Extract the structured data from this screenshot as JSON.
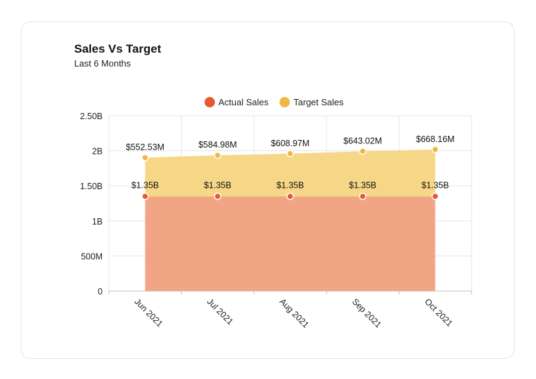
{
  "card": {
    "title": "Sales Vs Target",
    "subtitle": "Last 6 Months"
  },
  "colors": {
    "actual": "#e8582e",
    "actual_fill": "#f2a585",
    "target": "#efb844",
    "target_fill": "#f6d787",
    "grid": "#e6e6e6"
  },
  "chart_data": {
    "type": "area",
    "stacked": true,
    "categories": [
      "Jun 2021",
      "Jul 2021",
      "Aug 2021",
      "Sep 2021",
      "Oct 2021"
    ],
    "series": [
      {
        "name": "Actual Sales",
        "values": [
          1350000000,
          1350000000,
          1350000000,
          1350000000,
          1350000000
        ],
        "labels": [
          "$1.35B",
          "$1.35B",
          "$1.35B",
          "$1.35B",
          "$1.35B"
        ]
      },
      {
        "name": "Target Sales",
        "values": [
          552530000,
          584980000,
          608970000,
          643020000,
          668160000
        ],
        "labels": [
          "$552.53M",
          "$584.98M",
          "$608.97M",
          "$643.02M",
          "$668.16M"
        ]
      }
    ],
    "y_ticks": [
      {
        "value": 0,
        "label": "0"
      },
      {
        "value": 500000000,
        "label": "500M"
      },
      {
        "value": 1000000000,
        "label": "1B"
      },
      {
        "value": 1500000000,
        "label": "1.50B"
      },
      {
        "value": 2000000000,
        "label": "2B"
      },
      {
        "value": 2500000000,
        "label": "2.50B"
      }
    ],
    "ylim": [
      0,
      2500000000
    ],
    "grid": true,
    "legend_position": "top-center"
  }
}
